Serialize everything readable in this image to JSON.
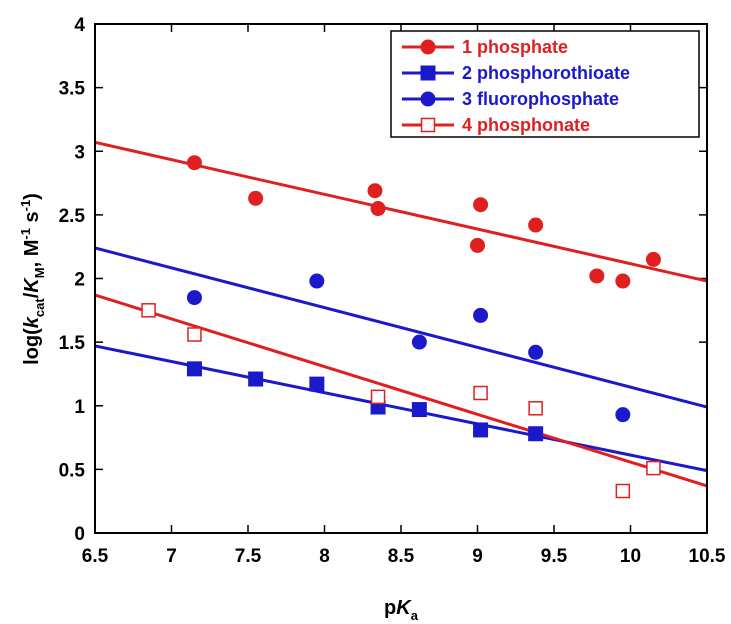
{
  "chart_data": {
    "type": "scatter",
    "xlabel": "pKa",
    "ylabel": "log(kcat/KM, M-1 s-1)",
    "xlim": [
      6.5,
      10.5
    ],
    "ylim": [
      0,
      4
    ],
    "x_ticks": [
      "6.5",
      "7",
      "7.5",
      "8",
      "8.5",
      "9",
      "9.5",
      "10",
      "10.5"
    ],
    "y_ticks": [
      "0",
      "0.5",
      "1",
      "1.5",
      "2",
      "2.5",
      "3",
      "3.5",
      "4"
    ],
    "legend_position": "top-right",
    "series": [
      {
        "name": "1 phosphate",
        "color": "#e02020",
        "marker": "filled-circle",
        "points": [
          [
            7.15,
            2.91
          ],
          [
            7.55,
            2.63
          ],
          [
            8.33,
            2.69
          ],
          [
            8.35,
            2.55
          ],
          [
            9.0,
            2.26
          ],
          [
            9.02,
            2.58
          ],
          [
            9.38,
            2.42
          ],
          [
            9.78,
            2.02
          ],
          [
            9.95,
            1.98
          ],
          [
            10.15,
            2.15
          ]
        ],
        "fit_line": [
          [
            6.5,
            3.07
          ],
          [
            10.5,
            1.98
          ]
        ]
      },
      {
        "name": "2 phosphorothioate",
        "color": "#1a1acc",
        "marker": "filled-square",
        "points": [
          [
            7.15,
            1.29
          ],
          [
            7.55,
            1.21
          ],
          [
            7.95,
            1.17
          ],
          [
            8.35,
            0.99
          ],
          [
            8.62,
            0.97
          ],
          [
            9.02,
            0.81
          ],
          [
            9.38,
            0.78
          ]
        ],
        "fit_line": [
          [
            6.5,
            1.47
          ],
          [
            10.5,
            0.49
          ]
        ]
      },
      {
        "name": "3 fluorophosphate",
        "color": "#1a1acc",
        "marker": "filled-circle",
        "points": [
          [
            7.15,
            1.85
          ],
          [
            7.95,
            1.98
          ],
          [
            8.62,
            1.5
          ],
          [
            9.02,
            1.71
          ],
          [
            9.38,
            1.42
          ],
          [
            9.95,
            0.93
          ]
        ],
        "fit_line": [
          [
            6.5,
            2.24
          ],
          [
            10.5,
            0.99
          ]
        ]
      },
      {
        "name": "4 phosphonate",
        "color": "#e02020",
        "marker": "open-square",
        "points": [
          [
            6.85,
            1.75
          ],
          [
            7.15,
            1.56
          ],
          [
            8.35,
            1.07
          ],
          [
            9.02,
            1.1
          ],
          [
            9.38,
            0.98
          ],
          [
            9.95,
            0.33
          ],
          [
            10.15,
            0.51
          ]
        ],
        "fit_line": [
          [
            6.5,
            1.87
          ],
          [
            10.5,
            0.37
          ]
        ]
      }
    ]
  }
}
